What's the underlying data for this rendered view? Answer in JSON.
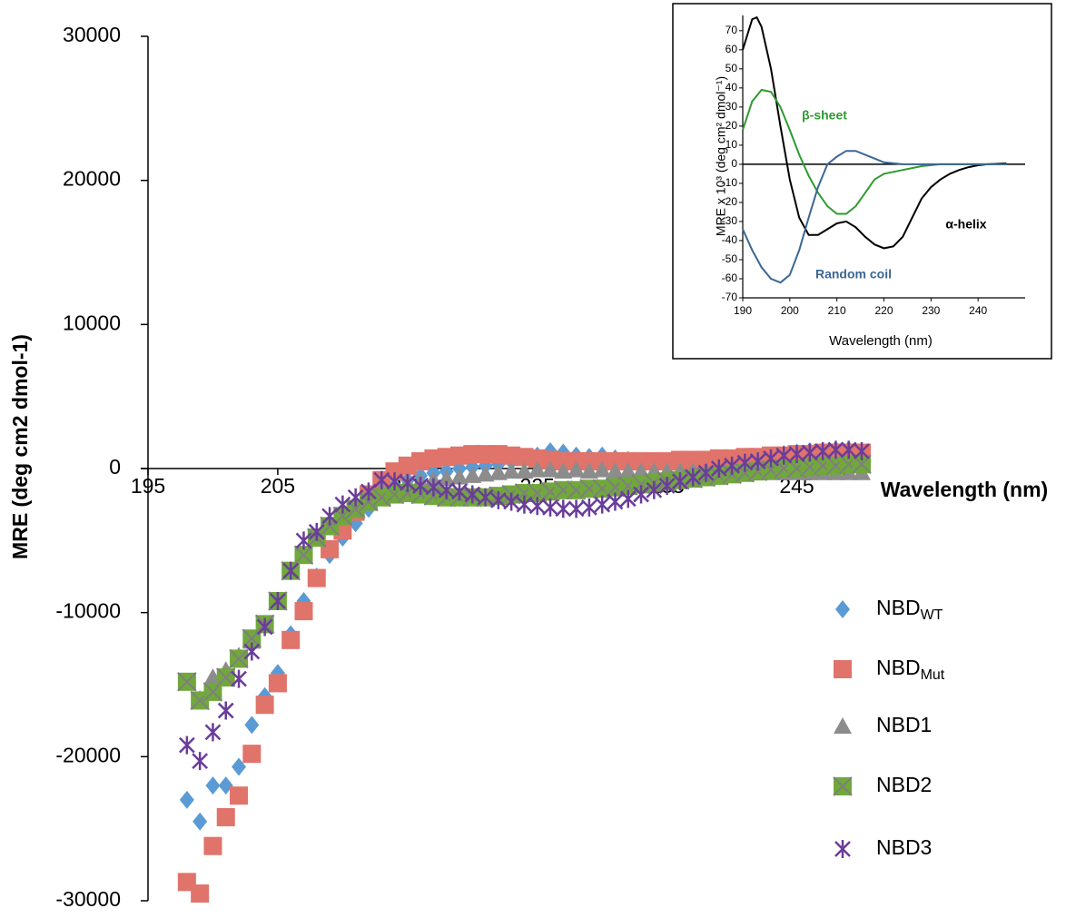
{
  "chart_data": [
    {
      "type": "scatter",
      "x_label": "Wavelength (nm)",
      "y_label": "MRE (deg cm2 dmol-1)",
      "xlim": [
        195,
        250
      ],
      "xticks": [
        195,
        205,
        215,
        225,
        235,
        245
      ],
      "ylim": [
        -30000,
        30000
      ],
      "yticks": [
        -30000,
        -20000,
        -10000,
        0,
        10000,
        20000,
        30000
      ],
      "x": [
        198,
        199,
        200,
        201,
        202,
        203,
        204,
        205,
        206,
        207,
        208,
        209,
        210,
        211,
        212,
        213,
        214,
        215,
        216,
        217,
        218,
        219,
        220,
        221,
        222,
        223,
        224,
        225,
        226,
        227,
        228,
        229,
        230,
        231,
        232,
        233,
        234,
        235,
        236,
        237,
        238,
        239,
        240,
        241,
        242,
        243,
        244,
        245,
        246,
        247,
        248,
        249,
        250
      ],
      "series": [
        {
          "name": "NBD",
          "subscript": "WT",
          "color": "#5b9bd5",
          "marker": "diamond",
          "values": [
            -23000,
            -24500,
            -22000,
            -22000,
            -20700,
            -17800,
            -15800,
            -14200,
            -11500,
            -9200,
            -7500,
            -6000,
            -4800,
            -3800,
            -2800,
            -1800,
            -1200,
            -800,
            -500,
            -300,
            -200,
            0,
            100,
            200,
            300,
            500,
            700,
            900,
            1200,
            1100,
            900,
            800,
            900,
            700,
            600,
            500,
            400,
            300,
            300,
            400,
            500,
            500,
            600,
            700,
            800,
            900,
            1000,
            1100,
            1200,
            1200,
            1300,
            1300,
            1200
          ]
        },
        {
          "name": "NBD",
          "subscript": "Mut",
          "color": "#e0736a",
          "marker": "square",
          "values": [
            -28700,
            -29500,
            -26200,
            -24200,
            -22700,
            -19800,
            -16400,
            -14900,
            -11900,
            -9900,
            -7600,
            -5600,
            -4300,
            -3000,
            -1800,
            -800,
            -200,
            200,
            500,
            700,
            800,
            900,
            1000,
            1000,
            1000,
            900,
            800,
            700,
            600,
            500,
            500,
            500,
            500,
            500,
            500,
            500,
            500,
            500,
            600,
            600,
            600,
            700,
            700,
            800,
            800,
            900,
            900,
            1000,
            1000,
            1100,
            1100,
            1100,
            1100
          ]
        },
        {
          "name": "NBD1",
          "color": "#8c8c8c",
          "marker": "triangle",
          "values": [
            -14800,
            -16000,
            -14500,
            -14000,
            -13000,
            -12000,
            -10800,
            -9200,
            -7200,
            -5900,
            -4800,
            -3900,
            -3100,
            -2500,
            -2000,
            -1500,
            -1200,
            -1000,
            -900,
            -800,
            -700,
            -600,
            -500,
            -400,
            -300,
            -200,
            -200,
            -100,
            -100,
            -200,
            -100,
            -200,
            -100,
            -200,
            -200,
            -200,
            -200,
            -200,
            -200,
            -200,
            -200,
            -200,
            -200,
            -200,
            -300,
            -300,
            -300,
            -300,
            -300,
            -300,
            -300,
            -300,
            -300
          ]
        },
        {
          "name": "NBD2",
          "color": "#70a83b",
          "marker": "xsquare",
          "values": [
            -14800,
            -16100,
            -15500,
            -14500,
            -13200,
            -11800,
            -10800,
            -9200,
            -7100,
            -6000,
            -4800,
            -4000,
            -3300,
            -2800,
            -2300,
            -2000,
            -1800,
            -1700,
            -1800,
            -1900,
            -2000,
            -2000,
            -2000,
            -2000,
            -1900,
            -1800,
            -1700,
            -1700,
            -1600,
            -1500,
            -1500,
            -1400,
            -1400,
            -1300,
            -1200,
            -1100,
            -1000,
            -900,
            -800,
            -700,
            -600,
            -500,
            -400,
            -300,
            -200,
            -100,
            0,
            0,
            100,
            200,
            200,
            300,
            300
          ]
        },
        {
          "name": "NBD3",
          "color": "#6a3d9a",
          "marker": "asterisk",
          "values": [
            -19200,
            -20300,
            -18300,
            -16800,
            -14600,
            -12700,
            -11000,
            -9200,
            -7100,
            -5000,
            -4400,
            -3300,
            -2500,
            -2000,
            -1600,
            -800,
            -900,
            -1000,
            -1200,
            -1300,
            -1500,
            -1600,
            -1800,
            -2000,
            -2200,
            -2300,
            -2500,
            -2600,
            -2700,
            -2800,
            -2800,
            -2700,
            -2500,
            -2300,
            -2100,
            -1800,
            -1500,
            -1200,
            -900,
            -600,
            -300,
            0,
            200,
            400,
            500,
            700,
            900,
            1000,
            1100,
            1200,
            1300,
            1300,
            1200
          ]
        }
      ]
    },
    {
      "type": "line",
      "x_label": "Wavelength (nm)",
      "y_label": "MRE x 10³ (deg cm² dmol⁻¹)",
      "xlim": [
        190,
        250
      ],
      "xticks": [
        190,
        200,
        210,
        220,
        230,
        240
      ],
      "ylim": [
        -70,
        78
      ],
      "yticks": [
        -70,
        -60,
        -50,
        -40,
        -30,
        -20,
        -10,
        0,
        10,
        20,
        30,
        40,
        50,
        60,
        70
      ],
      "series": [
        {
          "name": "α-helix",
          "color": "#000000",
          "x": [
            190,
            192,
            193,
            194,
            196,
            198,
            200,
            202,
            204,
            206,
            208,
            210,
            212,
            214,
            216,
            218,
            220,
            222,
            224,
            226,
            228,
            230,
            232,
            234,
            236,
            238,
            240,
            242,
            246
          ],
          "values": [
            60,
            76,
            77,
            72,
            50,
            20,
            -8,
            -28,
            -37,
            -37,
            -34,
            -31,
            -30,
            -33,
            -38,
            -42,
            -44,
            -43,
            -38,
            -28,
            -18,
            -12,
            -8,
            -5,
            -3,
            -1.5,
            -0.5,
            0,
            0.5
          ]
        },
        {
          "name": "β-sheet",
          "color": "#2e9a2e",
          "x": [
            190,
            192,
            194,
            196,
            198,
            200,
            202,
            204,
            206,
            208,
            210,
            212,
            214,
            216,
            218,
            220,
            224,
            228,
            232,
            246
          ],
          "values": [
            18,
            33,
            39,
            38,
            30,
            18,
            5,
            -6,
            -15,
            -22,
            -26,
            -26,
            -22,
            -15,
            -8,
            -5,
            -3,
            -1,
            0,
            0
          ]
        },
        {
          "name": "Random coil",
          "color": "#3b6793",
          "x": [
            190,
            192,
            194,
            196,
            198,
            200,
            202,
            204,
            206,
            208,
            210,
            212,
            214,
            216,
            218,
            220,
            224,
            246
          ],
          "values": [
            -34,
            -45,
            -54,
            -60,
            -62,
            -58,
            -45,
            -28,
            -12,
            0,
            4,
            7,
            7,
            5,
            3,
            1,
            0,
            0
          ]
        }
      ]
    }
  ]
}
